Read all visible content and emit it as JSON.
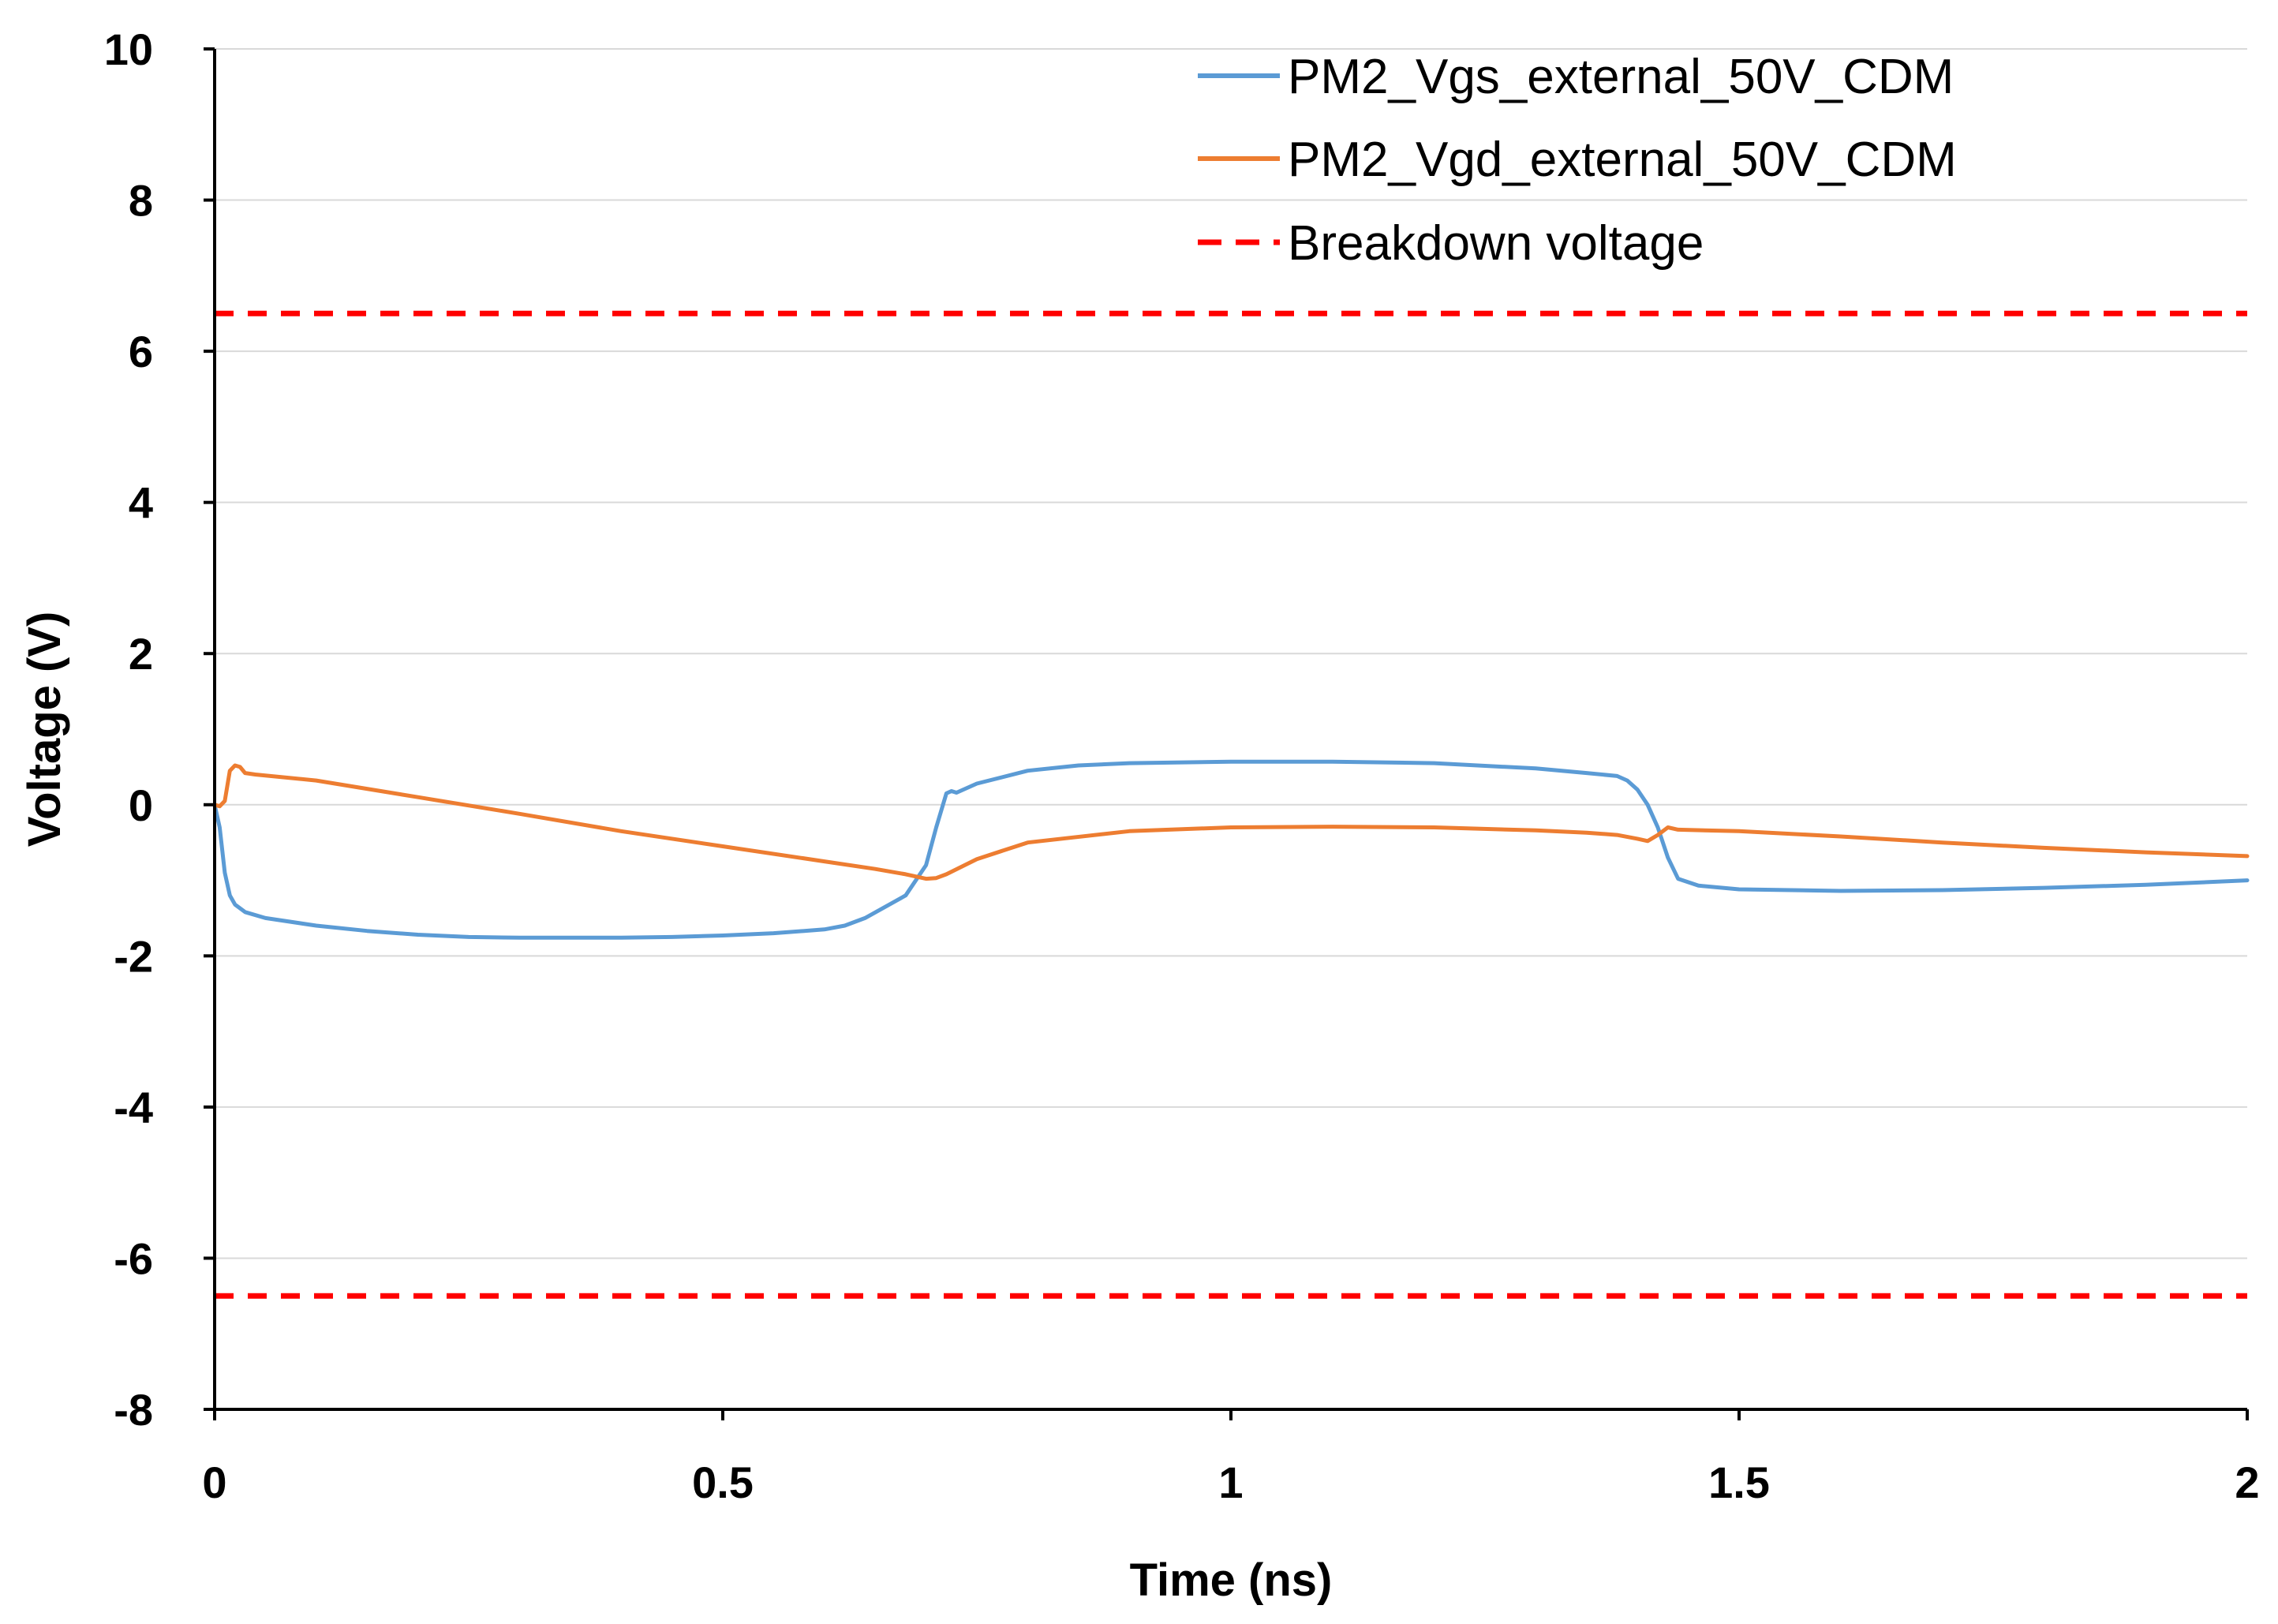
{
  "chart_data": {
    "type": "line",
    "title": "",
    "xlabel": "Time (ns)",
    "ylabel": "Voltage (V)",
    "xlim": [
      0,
      2
    ],
    "ylim": [
      -8,
      10
    ],
    "xticks": [
      0,
      0.5,
      1,
      1.5,
      2
    ],
    "xtick_labels": [
      "0",
      "0.5",
      "1",
      "1.5",
      "2"
    ],
    "yticks": [
      -8,
      -6,
      -4,
      -2,
      0,
      2,
      4,
      6,
      8,
      10
    ],
    "ytick_labels": [
      "-8",
      "-6",
      "-4",
      "-2",
      "0",
      "2",
      "4",
      "6",
      "8",
      "10"
    ],
    "grid": "horizontal",
    "legend_position": "top-right",
    "series": [
      {
        "name": "PM2_Vgs_external_50V_CDM",
        "color": "#5b9bd5",
        "style": "solid",
        "x": [
          0,
          0.005,
          0.01,
          0.015,
          0.02,
          0.03,
          0.05,
          0.1,
          0.15,
          0.2,
          0.25,
          0.3,
          0.35,
          0.4,
          0.45,
          0.5,
          0.55,
          0.6,
          0.62,
          0.64,
          0.66,
          0.68,
          0.7,
          0.71,
          0.72,
          0.725,
          0.73,
          0.75,
          0.8,
          0.85,
          0.9,
          1.0,
          1.1,
          1.2,
          1.3,
          1.35,
          1.38,
          1.39,
          1.4,
          1.41,
          1.42,
          1.43,
          1.44,
          1.46,
          1.5,
          1.6,
          1.7,
          1.8,
          1.9,
          2.0
        ],
        "y": [
          0,
          -0.3,
          -0.9,
          -1.2,
          -1.32,
          -1.42,
          -1.5,
          -1.6,
          -1.67,
          -1.72,
          -1.75,
          -1.76,
          -1.76,
          -1.76,
          -1.75,
          -1.73,
          -1.7,
          -1.65,
          -1.6,
          -1.5,
          -1.35,
          -1.2,
          -0.8,
          -0.3,
          0.15,
          0.18,
          0.16,
          0.28,
          0.45,
          0.52,
          0.55,
          0.57,
          0.57,
          0.55,
          0.48,
          0.42,
          0.38,
          0.32,
          0.2,
          0.0,
          -0.3,
          -0.7,
          -0.98,
          -1.07,
          -1.12,
          -1.14,
          -1.13,
          -1.1,
          -1.06,
          -1.0
        ]
      },
      {
        "name": "PM2_Vgd_external_50V_CDM",
        "color": "#ed7d31",
        "style": "solid",
        "x": [
          0,
          0.005,
          0.01,
          0.015,
          0.02,
          0.025,
          0.03,
          0.04,
          0.1,
          0.2,
          0.3,
          0.4,
          0.5,
          0.6,
          0.65,
          0.68,
          0.7,
          0.71,
          0.72,
          0.75,
          0.8,
          0.9,
          1.0,
          1.1,
          1.2,
          1.3,
          1.35,
          1.38,
          1.4,
          1.41,
          1.42,
          1.43,
          1.44,
          1.5,
          1.6,
          1.7,
          1.8,
          1.9,
          2.0
        ],
        "y": [
          0,
          -0.02,
          0.05,
          0.45,
          0.52,
          0.5,
          0.42,
          0.4,
          0.32,
          0.1,
          -0.12,
          -0.35,
          -0.55,
          -0.75,
          -0.85,
          -0.92,
          -0.98,
          -0.97,
          -0.92,
          -0.72,
          -0.5,
          -0.35,
          -0.3,
          -0.29,
          -0.3,
          -0.34,
          -0.37,
          -0.4,
          -0.45,
          -0.48,
          -0.4,
          -0.3,
          -0.33,
          -0.35,
          -0.42,
          -0.5,
          -0.57,
          -0.63,
          -0.68
        ]
      },
      {
        "name": "Breakdown voltage",
        "color": "#ff0000",
        "style": "dashed",
        "x": [
          0,
          2
        ],
        "y": [
          6.5,
          6.5
        ]
      },
      {
        "name": "Breakdown voltage (negative)",
        "legend": false,
        "color": "#ff0000",
        "style": "dashed",
        "x": [
          0,
          2
        ],
        "y": [
          -6.5,
          -6.5
        ]
      }
    ],
    "legend": [
      "PM2_Vgs_external_50V_CDM",
      "PM2_Vgd_external_50V_CDM",
      "Breakdown voltage"
    ]
  }
}
